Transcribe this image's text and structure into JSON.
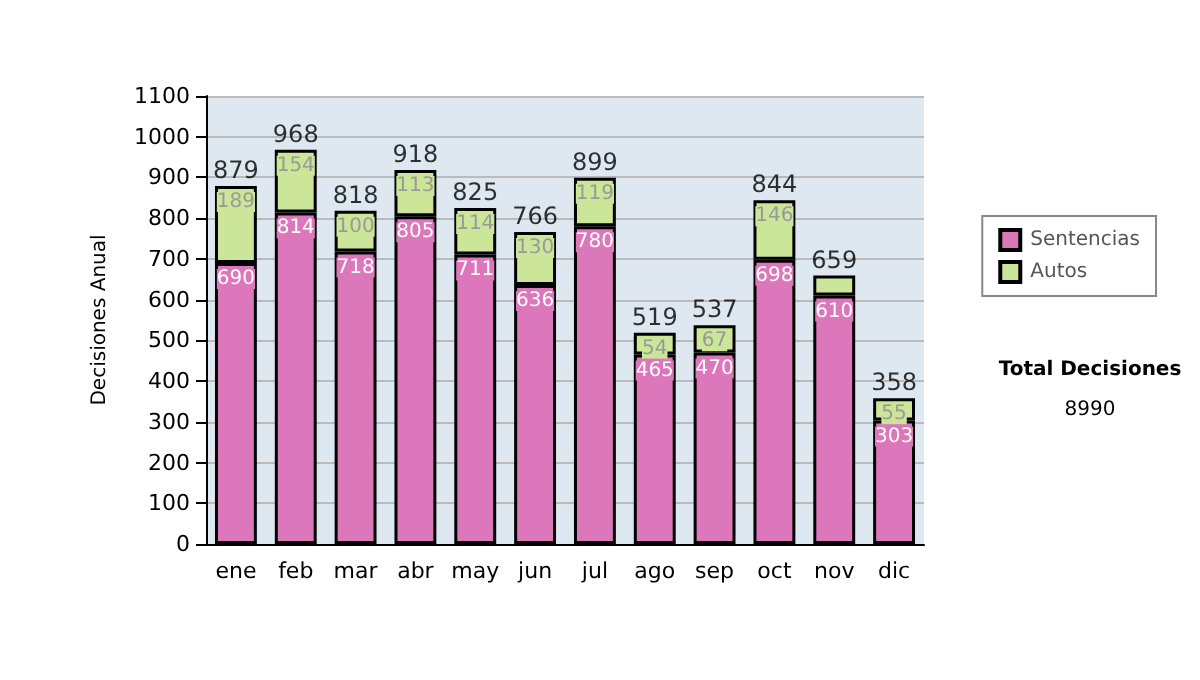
{
  "chart_data": {
    "type": "bar",
    "stacked": true,
    "ylabel": "Decisiones Anual",
    "categories": [
      "ene",
      "feb",
      "mar",
      "abr",
      "may",
      "jun",
      "jul",
      "ago",
      "sep",
      "oct",
      "nov",
      "dic"
    ],
    "series": [
      {
        "name": "Sentencias",
        "color": "#dd77bb",
        "values": [
          690,
          814,
          718,
          805,
          711,
          636,
          780,
          465,
          470,
          698,
          610,
          303
        ],
        "value_labels": [
          "690",
          "814",
          "718",
          "805",
          "711",
          "636",
          "780",
          "465",
          "470",
          "698",
          "610",
          "303"
        ]
      },
      {
        "name": "Autos",
        "color": "#cce699",
        "values": [
          189,
          154,
          100,
          113,
          114,
          130,
          119,
          54,
          67,
          146,
          49,
          55
        ],
        "value_labels": [
          "189",
          "154",
          "100",
          "113",
          "114",
          "130",
          "119",
          "54",
          "67",
          "146",
          null,
          "55"
        ]
      }
    ],
    "totals": [
      "879",
      "968",
      "818",
      "918",
      "825",
      "766",
      "899",
      "519",
      "537",
      "844",
      "659",
      "358"
    ],
    "ylim": [
      0,
      1100
    ],
    "yticks": [
      0,
      100,
      200,
      300,
      400,
      500,
      600,
      700,
      800,
      900,
      1000,
      1100
    ],
    "grid": "y",
    "legend": "right",
    "annotations": [
      "Total Decisiones",
      "8990"
    ]
  }
}
